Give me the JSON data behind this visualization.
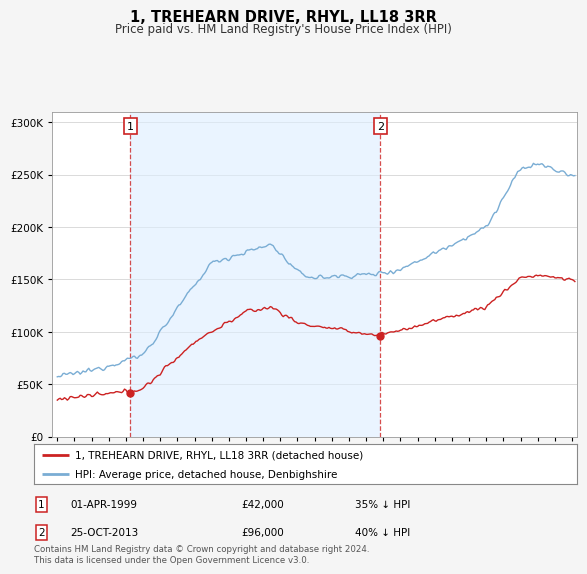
{
  "title": "1, TREHEARN DRIVE, RHYL, LL18 3RR",
  "subtitle": "Price paid vs. HM Land Registry's House Price Index (HPI)",
  "sale1_date": "01-APR-1999",
  "sale1_price": 42000,
  "sale1_pct": "35% ↓ HPI",
  "sale2_date": "25-OCT-2013",
  "sale2_price": 96000,
  "sale2_pct": "40% ↓ HPI",
  "sale1_year": 1999.25,
  "sale2_year": 2013.83,
  "legend_entry1": "1, TREHEARN DRIVE, RHYL, LL18 3RR (detached house)",
  "legend_entry2": "HPI: Average price, detached house, Denbighshire",
  "footnote": "Contains HM Land Registry data © Crown copyright and database right 2024.\nThis data is licensed under the Open Government Licence v3.0.",
  "hpi_color": "#7aadd4",
  "price_color": "#cc2222",
  "shade_color": "#ddeeff",
  "background_color": "#f5f5f5",
  "plot_bg_color": "#ffffff",
  "ylim": [
    0,
    310000
  ],
  "xlim_start": 1994.7,
  "xlim_end": 2025.3
}
